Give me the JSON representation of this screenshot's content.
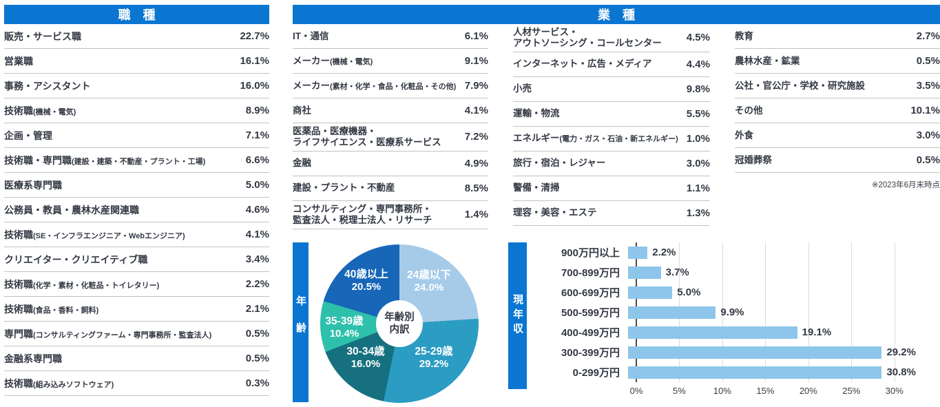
{
  "colors": {
    "header_blue": "#0b76d2",
    "bar_blue": "#8dc6ea",
    "text_dark": "#333843",
    "divider_gray": "#c2c2c2"
  },
  "chart_data": [
    {
      "type": "table",
      "title": "職　種",
      "rows": [
        {
          "label": "販売・サービス職",
          "sub": "",
          "value": "22.7%"
        },
        {
          "label": "営業職",
          "sub": "",
          "value": "16.1%"
        },
        {
          "label": "事務・アシスタント",
          "sub": "",
          "value": "16.0%"
        },
        {
          "label": "技術職",
          "sub": "(機械・電気)",
          "value": "8.9%"
        },
        {
          "label": "企画・管理",
          "sub": "",
          "value": "7.1%"
        },
        {
          "label": "技術職・専門職",
          "sub": "(建設・建築・不動産・プラント・工場)",
          "value": "6.6%"
        },
        {
          "label": "医療系専門職",
          "sub": "",
          "value": "5.0%"
        },
        {
          "label": "公務員・教員・農林水産関連職",
          "sub": "",
          "value": "4.6%"
        },
        {
          "label": "技術職",
          "sub": "(SE・インフラエンジニア・Webエンジニア)",
          "value": "4.1%"
        },
        {
          "label": "クリエイター・クリエイティブ職",
          "sub": "",
          "value": "3.4%"
        },
        {
          "label": "技術職",
          "sub": "(化学・素材・化粧品・トイレタリー)",
          "value": "2.2%"
        },
        {
          "label": "技術職",
          "sub": "(食品・香料・飼料)",
          "value": "2.1%"
        },
        {
          "label": "専門職",
          "sub": "(コンサルティングファーム・専門事務所・監査法人)",
          "value": "0.5%"
        },
        {
          "label": "金融系専門職",
          "sub": "",
          "value": "0.5%"
        },
        {
          "label": "技術職",
          "sub": "(組み込みソフトウェア)",
          "value": "0.3%"
        }
      ]
    },
    {
      "type": "table",
      "title": "業　種",
      "note": "※2023年6月末時点",
      "cols": [
        [
          {
            "label": "IT・通信",
            "sub": "",
            "value": "6.1%"
          },
          {
            "label": "メーカー",
            "sub": "(機械・電気)",
            "value": "9.1%"
          },
          {
            "label": "メーカー",
            "sub": "(素材・化学・食品・化粧品・その他)",
            "value": "7.9%"
          },
          {
            "label": "商社",
            "sub": "",
            "value": "4.1%"
          },
          {
            "label": "医薬品・医療機器・\nライフサイエンス・医療系サービス",
            "sub": "",
            "value": "7.2%"
          },
          {
            "label": "金融",
            "sub": "",
            "value": "4.9%"
          },
          {
            "label": "建設・プラント・不動産",
            "sub": "",
            "value": "8.5%"
          },
          {
            "label": "コンサルティング・専門事務所・\n監査法人・税理士法人・リサーチ",
            "sub": "",
            "value": "1.4%"
          }
        ],
        [
          {
            "label": "人材サービス・\nアウトソーシング・コールセンター",
            "sub": "",
            "value": "4.5%"
          },
          {
            "label": "インターネット・広告・メディア",
            "sub": "",
            "value": "4.4%"
          },
          {
            "label": "小売",
            "sub": "",
            "value": "9.8%"
          },
          {
            "label": "運輸・物流",
            "sub": "",
            "value": "5.5%"
          },
          {
            "label": "エネルギー",
            "sub": "(電力・ガス・石油・新エネルギー)",
            "value": "1.0%"
          },
          {
            "label": "旅行・宿泊・レジャー",
            "sub": "",
            "value": "3.0%"
          },
          {
            "label": "警備・清掃",
            "sub": "",
            "value": "1.1%"
          },
          {
            "label": "理容・美容・エステ",
            "sub": "",
            "value": "1.3%"
          }
        ],
        [
          {
            "label": "教育",
            "sub": "",
            "value": "2.7%"
          },
          {
            "label": "農林水産・鉱業",
            "sub": "",
            "value": "0.5%"
          },
          {
            "label": "公社・官公庁・学校・研究施設",
            "sub": "",
            "value": "3.5%"
          },
          {
            "label": "その他",
            "sub": "",
            "value": "10.1%"
          },
          {
            "label": "外食",
            "sub": "",
            "value": "3.0%"
          },
          {
            "label": "冠婚葬祭",
            "sub": "",
            "value": "0.5%"
          }
        ]
      ]
    },
    {
      "type": "pie",
      "banner": "年齢",
      "center_line1": "年齢別",
      "center_line2": "内訳",
      "labels": [
        "24歳以下",
        "25-29歳",
        "30-34歳",
        "35-39歳",
        "40歳以上"
      ],
      "values": [
        24.0,
        29.2,
        16.0,
        10.4,
        20.5
      ],
      "display": [
        "24.0%",
        "29.2%",
        "16.0%",
        "10.4%",
        "20.5%"
      ],
      "colors": [
        "#a6cbe9",
        "#2b9cc2",
        "#16707f",
        "#2ec0ab",
        "#1766b8"
      ]
    },
    {
      "type": "bar",
      "banner": "現年収",
      "categories": [
        "900万円以上",
        "700-899万円",
        "600-699万円",
        "500-599万円",
        "400-499万円",
        "300-399万円",
        "0-299万円"
      ],
      "values": [
        2.2,
        3.7,
        5.0,
        9.9,
        19.1,
        29.2,
        30.8
      ],
      "display": [
        "2.2%",
        "3.7%",
        "5.0%",
        "9.9%",
        "19.1%",
        "29.2%",
        "30.8%"
      ],
      "ticks": [
        "0%",
        "5%",
        "10%",
        "15%",
        "20%",
        "25%",
        "30%"
      ],
      "tick_values": [
        0,
        5,
        10,
        15,
        20,
        25,
        30
      ],
      "xmax": 32.5,
      "bar_color": "#8dc6ea"
    }
  ]
}
